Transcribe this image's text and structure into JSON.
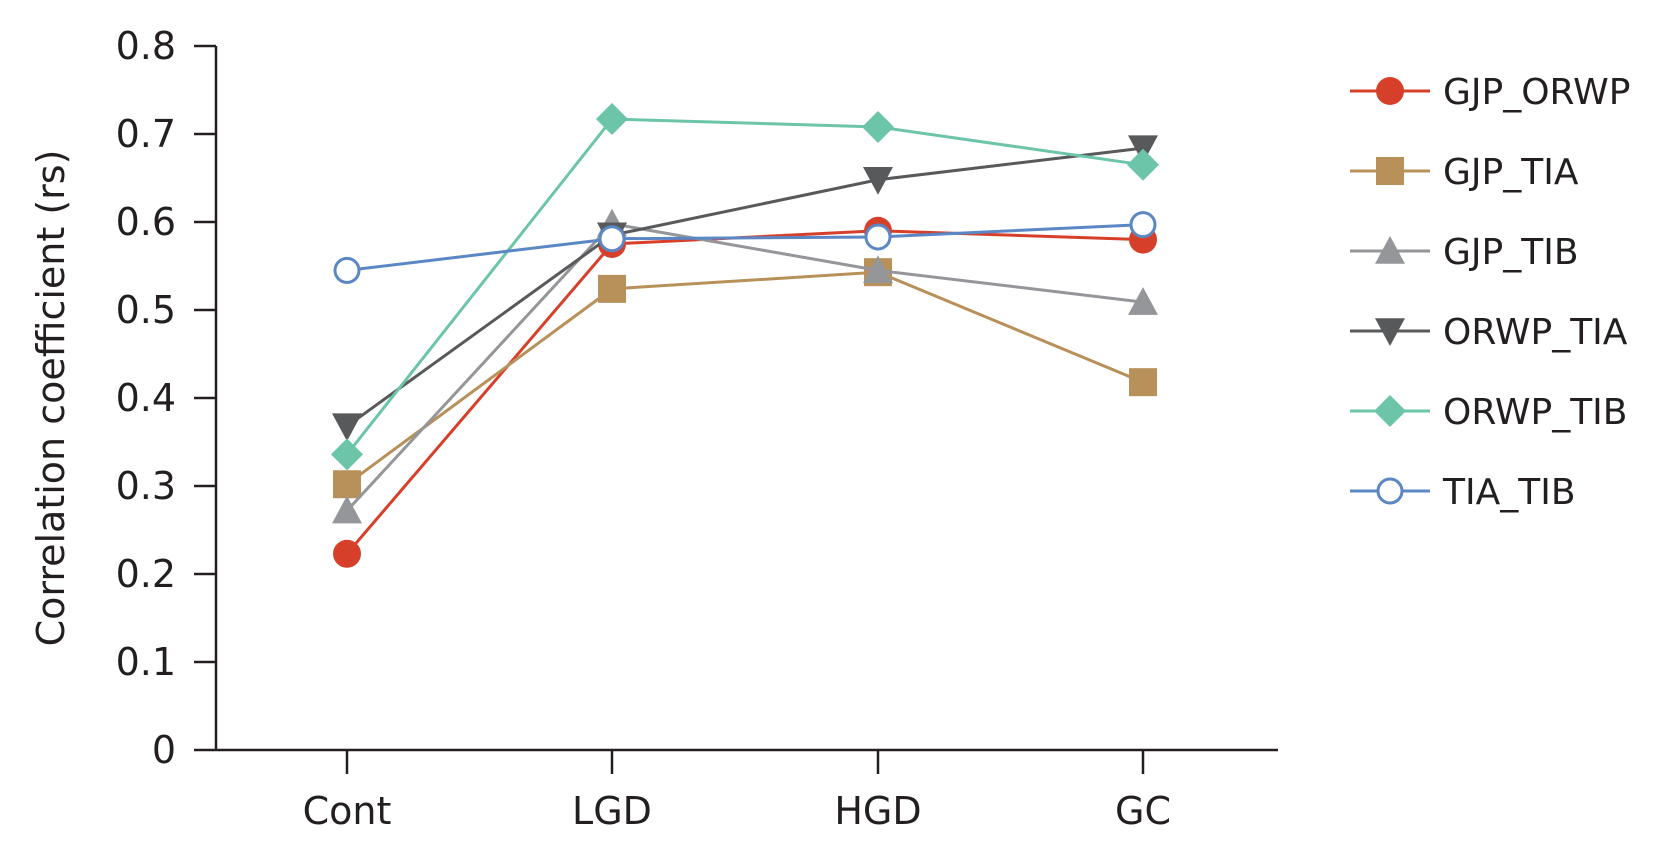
{
  "chart_data": {
    "type": "line",
    "title": "",
    "xlabel": "",
    "ylabel": "Correlation coefficient (rs)",
    "categories": [
      "Cont",
      "LGD",
      "HGD",
      "GC"
    ],
    "ylim": [
      0,
      0.8
    ],
    "yticks": [
      "0",
      "0.1",
      "0.2",
      "0.3",
      "0.4",
      "0.5",
      "0.6",
      "0.7",
      "0.8"
    ],
    "grid": false,
    "legend_position": "right",
    "series": [
      {
        "name": "GJP_ORWP",
        "values": [
          0.223,
          0.575,
          0.59,
          0.58
        ],
        "color": "#d6402b",
        "marker": "circle-filled"
      },
      {
        "name": "GJP_TIA",
        "values": [
          0.302,
          0.524,
          0.543,
          0.418
        ],
        "color": "#b8905a",
        "marker": "square"
      },
      {
        "name": "GJP_TIB",
        "values": [
          0.272,
          0.598,
          0.545,
          0.509
        ],
        "color": "#95969a",
        "marker": "triangle-up"
      },
      {
        "name": "ORWP_TIA",
        "values": [
          0.368,
          0.585,
          0.648,
          0.684
        ],
        "color": "#58595b",
        "marker": "triangle-down"
      },
      {
        "name": "ORWP_TIB",
        "values": [
          0.336,
          0.717,
          0.708,
          0.665
        ],
        "color": "#6cc5a8",
        "marker": "diamond"
      },
      {
        "name": "TIA_TIB",
        "values": [
          0.545,
          0.581,
          0.583,
          0.597
        ],
        "color": "#5b87c5",
        "marker": "circle-open"
      }
    ]
  }
}
